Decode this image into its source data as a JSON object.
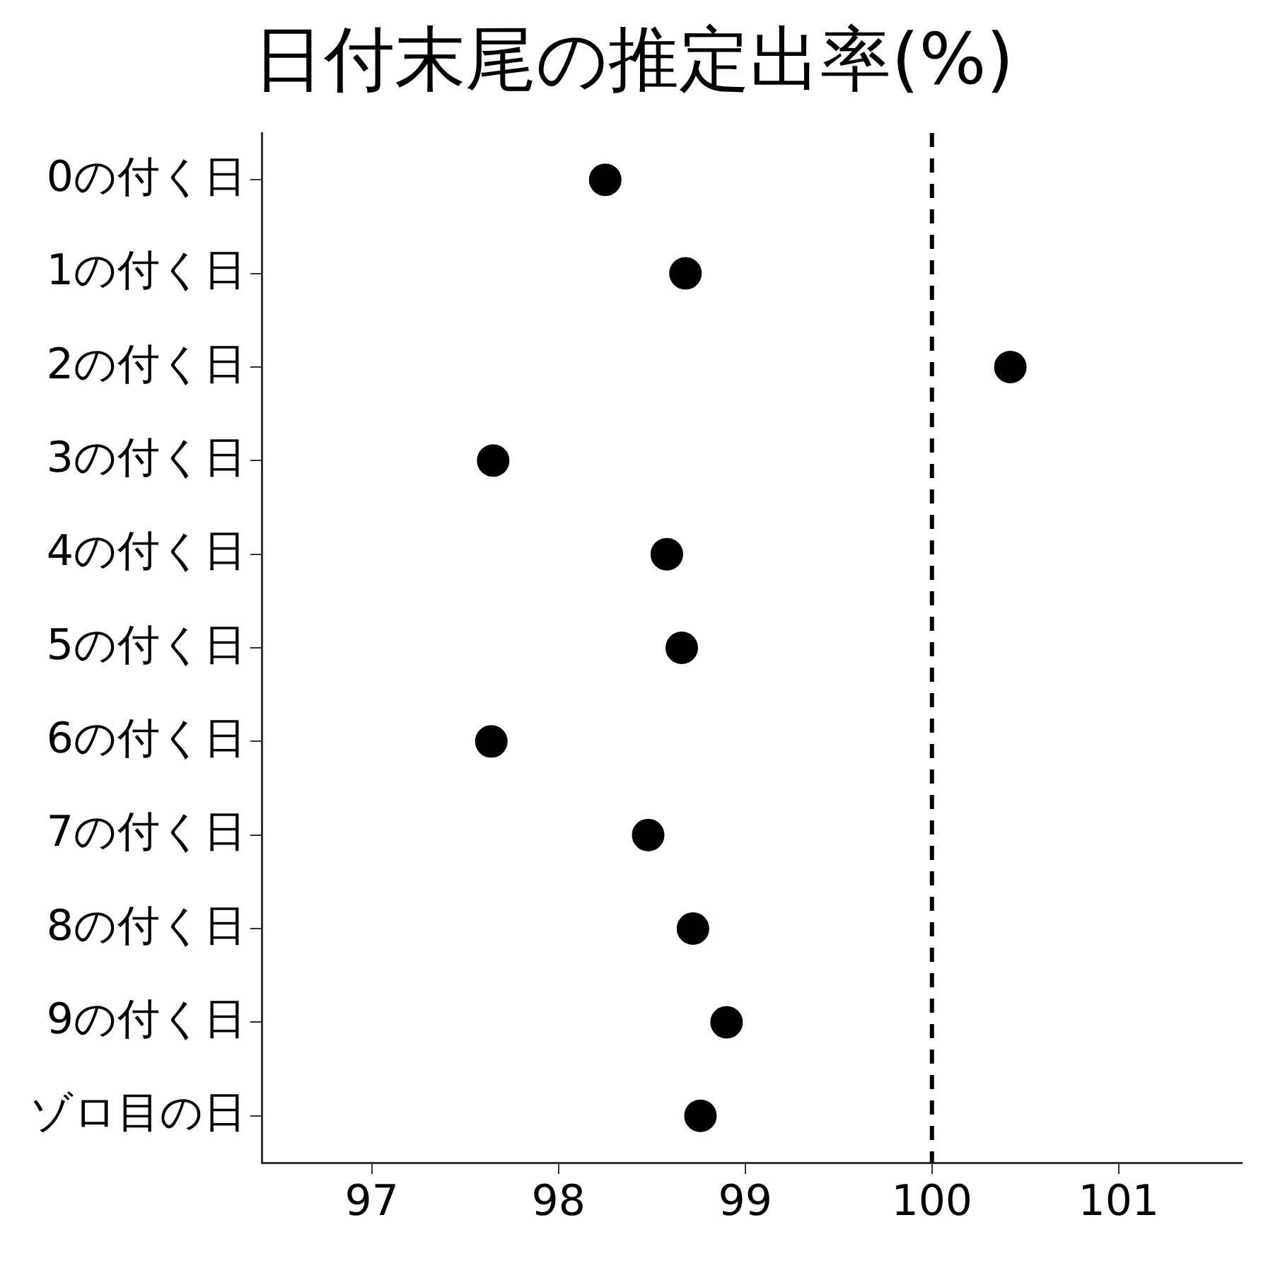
{
  "chart_data": {
    "type": "scatter",
    "title": "日付末尾の推定出率(%)",
    "orientation": "horizontal",
    "categories": [
      "0の付く日",
      "1の付く日",
      "2の付く日",
      "3の付く日",
      "4の付く日",
      "5の付く日",
      "6の付く日",
      "7の付く日",
      "8の付く日",
      "9の付く日",
      "ゾロ目の日"
    ],
    "values": [
      98.25,
      98.68,
      100.42,
      97.65,
      98.58,
      98.66,
      97.64,
      98.48,
      98.72,
      98.9,
      98.76
    ],
    "color": "#000000",
    "marker": "circle",
    "grid": false,
    "legend": false,
    "xlim": [
      96.41,
      101.66
    ],
    "xticks": [
      97,
      98,
      99,
      100,
      101
    ],
    "ref_lines": [
      {
        "axis": "x",
        "value": 100,
        "line_style": "dashed",
        "color": "#000000"
      }
    ]
  }
}
